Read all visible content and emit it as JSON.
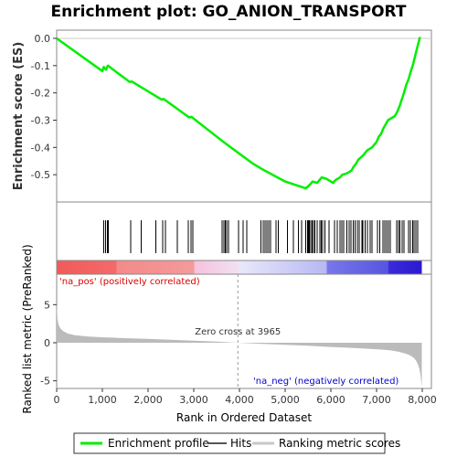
{
  "chart_data": {
    "type": "line",
    "title": "Enrichment plot: GO_ANION_TRANSPORT",
    "colors": {
      "profile": "#00ee00",
      "hits": "#000000",
      "ranking_fill": "#bbbbbb",
      "zero_cross_line": "#999999",
      "pos_label": "#dd0000",
      "neg_label": "#0000cc"
    },
    "top_panel": {
      "ylabel": "Enrichment score (ES)",
      "ylim": [
        -0.6,
        0.03
      ],
      "yticks": [
        0.0,
        -0.1,
        -0.2,
        -0.3,
        -0.4,
        -0.5
      ],
      "ytick_labels": [
        "0.0",
        "-0.1",
        "-0.2",
        "-0.3",
        "-0.4",
        "-0.5"
      ],
      "xlim": [
        0,
        8200
      ],
      "series": [
        {
          "name": "Enrichment profile",
          "x": [
            0,
            1000,
            1030,
            1080,
            1120,
            1600,
            1640,
            2300,
            2340,
            2900,
            2950,
            3650,
            4300,
            4500,
            5000,
            5450,
            5550,
            5600,
            5700,
            5800,
            5900,
            5950,
            6050,
            6100,
            6200,
            6250,
            6350,
            6400,
            6450,
            6500,
            6550,
            6600,
            6700,
            6750,
            6800,
            6850,
            6900,
            7000,
            7050,
            7100,
            7150,
            7200,
            7250,
            7300,
            7400,
            7450,
            7500,
            7600,
            7650,
            7700,
            7750,
            7800,
            7850,
            7880,
            7950
          ],
          "y": [
            0.0,
            -0.12,
            -0.105,
            -0.115,
            -0.1,
            -0.16,
            -0.158,
            -0.225,
            -0.222,
            -0.29,
            -0.288,
            -0.38,
            -0.46,
            -0.48,
            -0.525,
            -0.55,
            -0.535,
            -0.525,
            -0.53,
            -0.51,
            -0.515,
            -0.52,
            -0.53,
            -0.52,
            -0.51,
            -0.5,
            -0.495,
            -0.49,
            -0.485,
            -0.47,
            -0.46,
            -0.445,
            -0.43,
            -0.42,
            -0.41,
            -0.405,
            -0.4,
            -0.38,
            -0.36,
            -0.35,
            -0.33,
            -0.315,
            -0.3,
            -0.295,
            -0.285,
            -0.27,
            -0.25,
            -0.2,
            -0.17,
            -0.15,
            -0.12,
            -0.095,
            -0.06,
            -0.04,
            0.005
          ]
        }
      ]
    },
    "hits_panel": {
      "hits": [
        1030,
        1070,
        1110,
        1130,
        1620,
        1850,
        2170,
        2320,
        2380,
        2640,
        2880,
        2940,
        2980,
        3620,
        3660,
        3690,
        3720,
        3760,
        3980,
        4080,
        4160,
        4470,
        4520,
        4560,
        4600,
        4640,
        4680,
        4800,
        4850,
        5050,
        5180,
        5290,
        5360,
        5450,
        5490,
        5510,
        5530,
        5560,
        5590,
        5620,
        5650,
        5700,
        5760,
        5790,
        5820,
        5870,
        5960,
        6080,
        6140,
        6200,
        6240,
        6280,
        6350,
        6400,
        6440,
        6490,
        6530,
        6580,
        6620,
        6680,
        6700,
        6750,
        6800,
        6860,
        6900,
        7020,
        7070,
        7140,
        7180,
        7220,
        7260,
        7300,
        7440,
        7480,
        7510,
        7560,
        7600,
        7700,
        7740,
        7790,
        7820,
        7860,
        7900
      ]
    },
    "color_bar": {
      "xlim": [
        0,
        8200
      ],
      "stops": [
        {
          "x": 0,
          "color": "#f25a5a"
        },
        {
          "x": 1300,
          "color": "#f26a6a"
        },
        {
          "x": 1320,
          "color": "#f48a8a"
        },
        {
          "x": 3000,
          "color": "#f49a9a"
        },
        {
          "x": 3020,
          "color": "#f6c2de"
        },
        {
          "x": 3965,
          "color": "#f2e0f0"
        },
        {
          "x": 4000,
          "color": "#e8e8fa"
        },
        {
          "x": 5900,
          "color": "#b8b8f4"
        },
        {
          "x": 5920,
          "color": "#7878ea"
        },
        {
          "x": 7250,
          "color": "#5555e0"
        },
        {
          "x": 7270,
          "color": "#3a2ad8"
        },
        {
          "x": 7990,
          "color": "#2b1ad0"
        }
      ]
    },
    "bottom_panel": {
      "ylabel": "Ranked list metric (PreRanked)",
      "xlabel": "Rank in Ordered Dataset",
      "ylim": [
        -6,
        9
      ],
      "yticks": [
        5,
        0,
        -5
      ],
      "ytick_labels": [
        "5",
        "0",
        "-5"
      ],
      "xlim": [
        0,
        8200
      ],
      "xticks": [
        0,
        1000,
        2000,
        3000,
        4000,
        5000,
        6000,
        7000,
        8000
      ],
      "xtick_labels": [
        "0",
        "1,000",
        "2,000",
        "3,000",
        "4,000",
        "5,000",
        "6,000",
        "7,000",
        "8,000"
      ],
      "metric_x": [
        0,
        15,
        40,
        80,
        150,
        250,
        400,
        700,
        1000,
        1500,
        2000,
        2500,
        3000,
        3500,
        3965,
        4500,
        5000,
        5500,
        6000,
        6500,
        7000,
        7300,
        7500,
        7650,
        7750,
        7820,
        7870,
        7910,
        7940,
        7960,
        7975,
        7990
      ],
      "metric_y": [
        5.4,
        3.2,
        2.4,
        1.9,
        1.5,
        1.2,
        1.0,
        0.82,
        0.72,
        0.6,
        0.5,
        0.4,
        0.28,
        0.15,
        0.0,
        -0.15,
        -0.28,
        -0.4,
        -0.55,
        -0.7,
        -0.85,
        -1.0,
        -1.2,
        -1.45,
        -1.7,
        -2.0,
        -2.4,
        -2.9,
        -3.5,
        -4.2,
        -5.0,
        -5.8
      ],
      "pos_label": "'na_pos' (positively correlated)",
      "neg_label": "'na_neg' (negatively correlated)",
      "zero_cross_x": 3965,
      "zero_cross_label": "Zero cross at 3965"
    },
    "legend": {
      "placement": "bottom",
      "items": [
        {
          "label": "Enrichment profile",
          "kind": "line",
          "color": "#00ee00"
        },
        {
          "label": "Hits",
          "kind": "line",
          "color": "#555555"
        },
        {
          "label": "Ranking metric scores",
          "kind": "line",
          "color": "#c8c8c8"
        }
      ]
    }
  }
}
